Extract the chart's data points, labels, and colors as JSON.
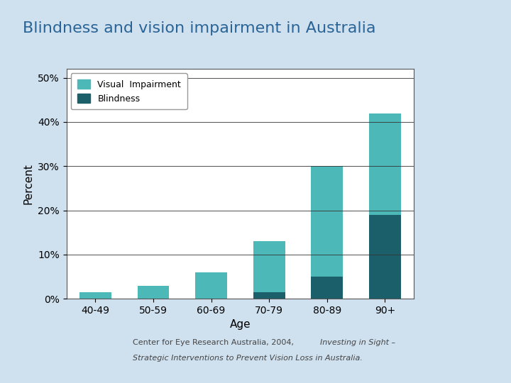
{
  "title": "Blindness and vision impairment in Australia",
  "title_color": "#2a6496",
  "title_fontsize": 16,
  "categories": [
    "40-49",
    "50-59",
    "60-69",
    "70-79",
    "80-89",
    "90+"
  ],
  "visual_impairment": [
    1.5,
    3.0,
    6.0,
    11.5,
    25.0,
    23.0
  ],
  "blindness": [
    0.0,
    0.0,
    0.0,
    1.5,
    5.0,
    19.0
  ],
  "color_visual": "#4db8b8",
  "color_blindness": "#1a5f6a",
  "ylabel": "Percent",
  "xlabel": "Age",
  "yticks": [
    0,
    10,
    20,
    30,
    40,
    50
  ],
  "ytick_labels": [
    "0%",
    "10%",
    "20%",
    "30%",
    "40%",
    "50%"
  ],
  "ylim": [
    0,
    52
  ],
  "legend_labels": [
    "Visual  Impairment",
    "Blindness"
  ],
  "chart_bg": "#ffffff",
  "bar_width": 0.55,
  "source_line1": "Center for Eye Research Australia, 2004, ",
  "source_line1_italic": "Investing in Sight –",
  "source_line2_italic": "Strategic Interventions to Prevent Vision Loss in Australia.",
  "fig_bg": "#cfe0ef"
}
